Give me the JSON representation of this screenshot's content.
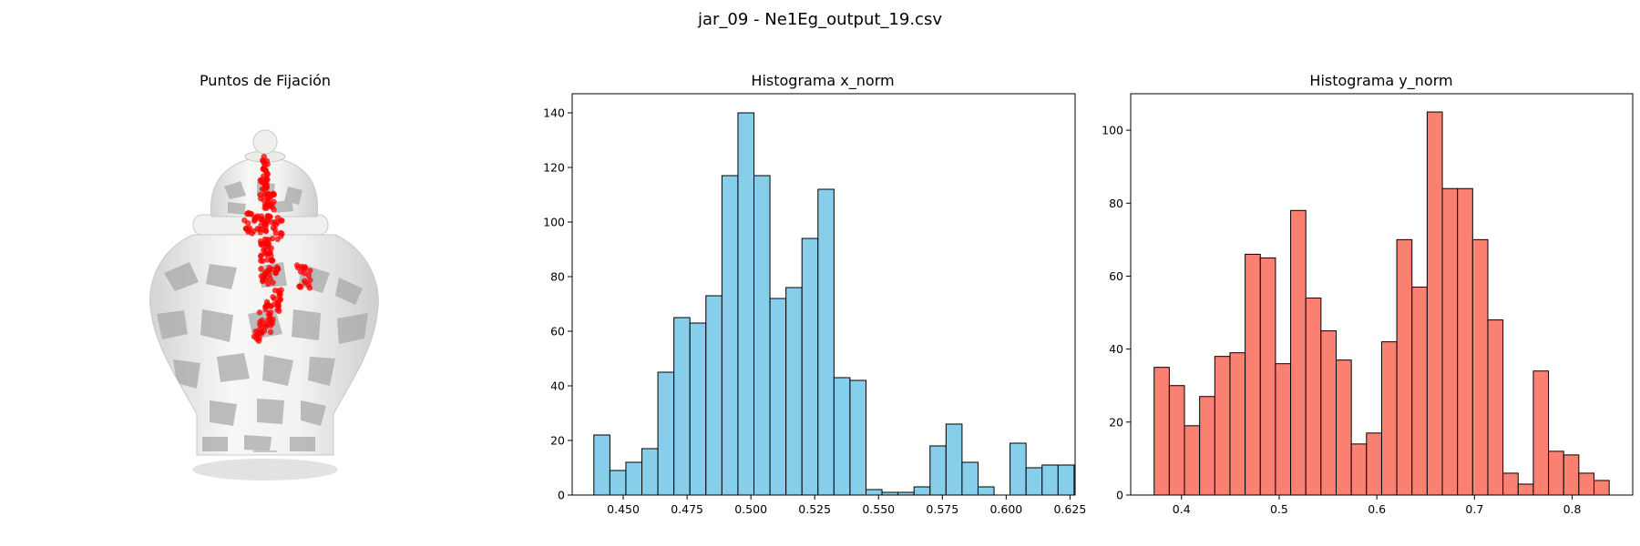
{
  "suptitle": "jar_09 - Ne1Eg_output_19.csv",
  "image_panel": {
    "title": "Puntos de Fijación",
    "point_color": "#ff0000"
  },
  "chart_data": [
    {
      "type": "bar",
      "title": "Histograma x_norm",
      "xlabel": "",
      "ylabel": "",
      "color": "#87ceeb",
      "edgecolor": "#000000",
      "bin_start": 0.4385,
      "bin_width": 0.00627,
      "values": [
        22,
        9,
        12,
        17,
        45,
        65,
        63,
        73,
        117,
        140,
        117,
        72,
        76,
        94,
        112,
        43,
        42,
        2,
        1,
        1,
        3,
        18,
        26,
        12,
        3,
        0,
        19,
        10,
        11,
        11
      ],
      "xlim": [
        0.43,
        0.627
      ],
      "ylim": [
        0,
        147
      ],
      "xticks": [
        0.45,
        0.475,
        0.5,
        0.525,
        0.55,
        0.575,
        0.6,
        0.625
      ],
      "xtick_labels": [
        "0.450",
        "0.475",
        "0.500",
        "0.525",
        "0.550",
        "0.575",
        "0.600",
        "0.625"
      ],
      "yticks": [
        0,
        20,
        40,
        60,
        80,
        100,
        120,
        140
      ],
      "ytick_labels": [
        "0",
        "20",
        "40",
        "60",
        "80",
        "100",
        "120",
        "140"
      ]
    },
    {
      "type": "bar",
      "title": "Histograma y_norm",
      "xlabel": "",
      "ylabel": "",
      "color": "#fa8072",
      "edgecolor": "#000000",
      "bin_start": 0.372,
      "bin_width": 0.01553,
      "values": [
        35,
        30,
        19,
        27,
        38,
        39,
        66,
        65,
        36,
        78,
        54,
        45,
        37,
        14,
        17,
        42,
        70,
        57,
        105,
        84,
        84,
        70,
        48,
        6,
        3,
        34,
        12,
        11,
        6,
        4
      ],
      "xlim": [
        0.348,
        0.862
      ],
      "ylim": [
        0,
        110
      ],
      "xticks": [
        0.4,
        0.5,
        0.6,
        0.7,
        0.8
      ],
      "xtick_labels": [
        "0.4",
        "0.5",
        "0.6",
        "0.7",
        "0.8"
      ],
      "yticks": [
        0,
        20,
        40,
        60,
        80,
        100
      ],
      "ytick_labels": [
        "0",
        "20",
        "40",
        "60",
        "80",
        "100"
      ]
    }
  ]
}
